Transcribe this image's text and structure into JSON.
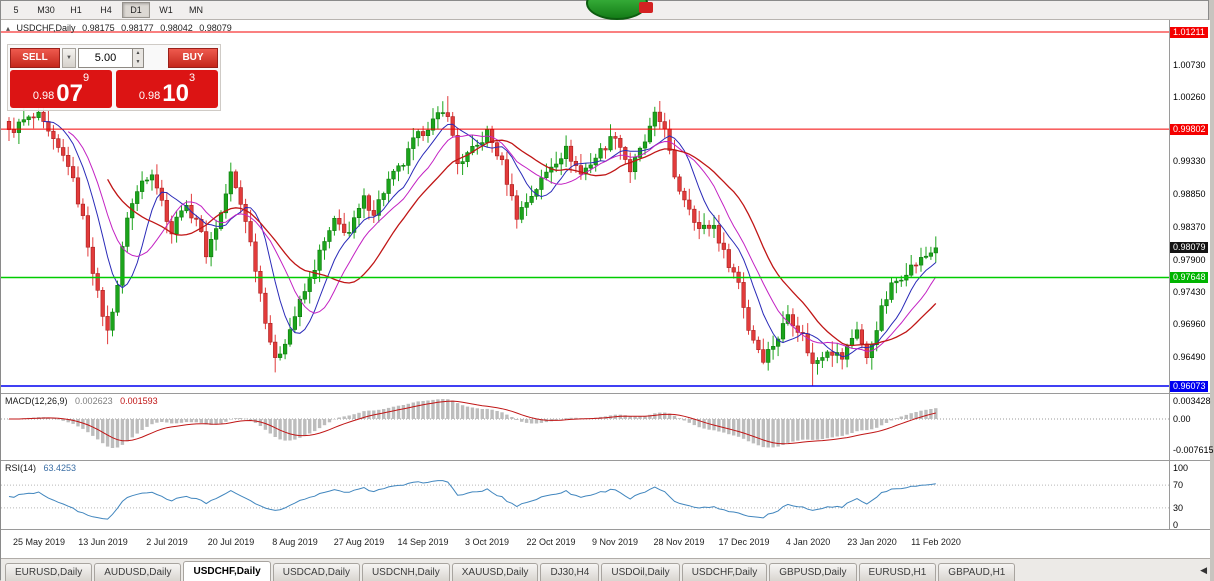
{
  "toolbar": {
    "timeframes": [
      {
        "label": "5",
        "active": false
      },
      {
        "label": "M30",
        "active": false
      },
      {
        "label": "H1",
        "active": false
      },
      {
        "label": "H4",
        "active": false
      },
      {
        "label": "D1",
        "active": true
      },
      {
        "label": "W1",
        "active": false
      },
      {
        "label": "MN",
        "active": false
      }
    ]
  },
  "chart_header": {
    "collapse_icon": "▴",
    "symbol": "USDCHF,Daily",
    "open": "0.98175",
    "high": "0.98177",
    "low": "0.98042",
    "close": "0.98079"
  },
  "one_click": {
    "sell_label": "SELL",
    "buy_label": "BUY",
    "volume": "5.00",
    "sell_price": {
      "base": "0.98",
      "main": "07",
      "sup": "9"
    },
    "buy_price": {
      "base": "0.98",
      "main": "10",
      "sup": "3"
    }
  },
  "price_axis": {
    "labels": [
      {
        "text": "1.01211",
        "type": "red"
      },
      {
        "text": "1.00730",
        "type": "plain"
      },
      {
        "text": "1.00260",
        "type": "plain"
      },
      {
        "text": "0.99802",
        "type": "red"
      },
      {
        "text": "0.99330",
        "type": "plain"
      },
      {
        "text": "0.98850",
        "type": "plain"
      },
      {
        "text": "0.98370",
        "type": "plain"
      },
      {
        "text": "0.98079",
        "type": "current"
      },
      {
        "text": "0.97900",
        "type": "plain"
      },
      {
        "text": "0.97648",
        "type": "green"
      },
      {
        "text": "0.97430",
        "type": "plain"
      },
      {
        "text": "0.96960",
        "type": "plain"
      },
      {
        "text": "0.96490",
        "type": "plain"
      },
      {
        "text": "0.96073",
        "type": "blue"
      }
    ]
  },
  "chart_data": [
    {
      "type": "candlestick",
      "symbol": "USDCHF",
      "timeframe": "Daily",
      "current_ohlc": {
        "open": 0.98175,
        "high": 0.98177,
        "low": 0.98042,
        "close": 0.98079
      },
      "bars": 189,
      "last_close": 0.98079,
      "ylim": [
        0.959,
        1.0135
      ],
      "y_axis": {
        "top_price": 1.01211,
        "top_y": 12,
        "bottom_price": 0.96073,
        "bottom_y": 366
      },
      "close_anchors": [
        [
          0,
          0.9975
        ],
        [
          3,
          0.9992
        ],
        [
          6,
          0.9998
        ],
        [
          9,
          0.996
        ],
        [
          12,
          0.993
        ],
        [
          15,
          0.985
        ],
        [
          18,
          0.974
        ],
        [
          20,
          0.9685
        ],
        [
          22,
          0.9755
        ],
        [
          24,
          0.9855
        ],
        [
          27,
          0.9905
        ],
        [
          29,
          0.992
        ],
        [
          31,
          0.9875
        ],
        [
          33,
          0.983
        ],
        [
          35,
          0.9868
        ],
        [
          38,
          0.9852
        ],
        [
          40,
          0.98
        ],
        [
          43,
          0.9858
        ],
        [
          45,
          0.9915
        ],
        [
          48,
          0.985
        ],
        [
          50,
          0.978
        ],
        [
          52,
          0.9705
        ],
        [
          54,
          0.9642
        ],
        [
          57,
          0.969
        ],
        [
          59,
          0.9728
        ],
        [
          61,
          0.976
        ],
        [
          63,
          0.98
        ],
        [
          66,
          0.9845
        ],
        [
          69,
          0.983
        ],
        [
          72,
          0.9878
        ],
        [
          74,
          0.986
        ],
        [
          77,
          0.9905
        ],
        [
          80,
          0.993
        ],
        [
          82,
          0.9962
        ],
        [
          85,
          0.9985
        ],
        [
          87,
          0.9998
        ],
        [
          89,
          1.0005
        ],
        [
          91,
          0.993
        ],
        [
          95,
          0.9955
        ],
        [
          97,
          0.9975
        ],
        [
          100,
          0.993
        ],
        [
          103,
          0.9855
        ],
        [
          107,
          0.9895
        ],
        [
          110,
          0.9928
        ],
        [
          113,
          0.995
        ],
        [
          116,
          0.9915
        ],
        [
          120,
          0.9948
        ],
        [
          123,
          0.9973
        ],
        [
          126,
          0.992
        ],
        [
          129,
          0.9962
        ],
        [
          131,
          0.9998
        ],
        [
          133,
          0.9985
        ],
        [
          135,
          0.9905
        ],
        [
          138,
          0.9868
        ],
        [
          140,
          0.9835
        ],
        [
          143,
          0.984
        ],
        [
          145,
          0.98
        ],
        [
          148,
          0.9758
        ],
        [
          150,
          0.969
        ],
        [
          153,
          0.9648
        ],
        [
          156,
          0.9678
        ],
        [
          158,
          0.9712
        ],
        [
          161,
          0.968
        ],
        [
          163,
          0.9638
        ],
        [
          166,
          0.9662
        ],
        [
          169,
          0.9648
        ],
        [
          172,
          0.9692
        ],
        [
          174,
          0.9645
        ],
        [
          177,
          0.9718
        ],
        [
          179,
          0.9752
        ],
        [
          182,
          0.9775
        ],
        [
          185,
          0.979
        ],
        [
          188,
          0.98079
        ]
      ],
      "spikes": [
        {
          "i": 20,
          "low": 0.9668
        },
        {
          "i": 54,
          "low": 0.9627
        },
        {
          "i": 89,
          "high": 1.0028
        },
        {
          "i": 163,
          "low": 0.9607
        }
      ],
      "horizontal_lines": [
        {
          "price": 1.01211,
          "color": "#f40000",
          "width": 1
        },
        {
          "price": 0.99802,
          "color": "#f40000",
          "width": 1
        },
        {
          "price": 0.97648,
          "color": "#00cc00",
          "width": 1.4
        },
        {
          "price": 0.96073,
          "color": "#0000f0",
          "width": 1.4
        }
      ],
      "moving_averages": [
        {
          "name": "ma-fast",
          "period": 8,
          "color": "#2a2ab8",
          "width": 1
        },
        {
          "name": "ma-mid",
          "period": 13,
          "color": "#c322c3",
          "width": 1
        },
        {
          "name": "ma-slow",
          "period": 21,
          "color": "#c01616",
          "width": 1.3
        }
      ],
      "candle_colors": {
        "up_fill": "#1ca41c",
        "up_stroke": "#0d7a0d",
        "down_fill": "#e23b3b",
        "down_stroke": "#a81f1f"
      },
      "date_labels": [
        "25 May 2019",
        "13 Jun 2019",
        "2 Jul 2019",
        "20 Jul 2019",
        "8 Aug 2019",
        "27 Aug 2019",
        "14 Sep 2019",
        "3 Oct 2019",
        "22 Oct 2019",
        "9 Nov 2019",
        "28 Nov 2019",
        "17 Dec 2019",
        "4 Jan 2020",
        "23 Jan 2020",
        "11 Feb 2020"
      ]
    },
    {
      "type": "macd-histogram",
      "label": "MACD(12,26,9)",
      "macd_value": "0.002623",
      "signal_value": "0.001593",
      "fast": 12,
      "slow": 26,
      "signal": 9,
      "axis_labels": [
        {
          "text": "0.003428",
          "y": 7
        },
        {
          "text": "0.00",
          "y": 25
        },
        {
          "text": "-0.007615",
          "y": 56
        }
      ],
      "zero_y": 25,
      "histogram_color": "#bdbdbd",
      "signal_color": "#c01616"
    },
    {
      "type": "rsi",
      "label": "RSI(14)",
      "value": "63.4253",
      "period": 14,
      "axis_labels": [
        {
          "text": "100",
          "y": 7
        },
        {
          "text": "70",
          "y": 24
        },
        {
          "text": "30",
          "y": 47
        },
        {
          "text": "0",
          "y": 64
        }
      ],
      "levels": [
        70,
        30
      ],
      "line_color": "#4186be"
    }
  ],
  "tabs": [
    {
      "label": "EURUSD,Daily",
      "active": false
    },
    {
      "label": "AUDUSD,Daily",
      "active": false
    },
    {
      "label": "USDCHF,Daily",
      "active": true
    },
    {
      "label": "USDCAD,Daily",
      "active": false
    },
    {
      "label": "USDCNH,Daily",
      "active": false
    },
    {
      "label": "XAUUSD,Daily",
      "active": false
    },
    {
      "label": "DJ30,H4",
      "active": false
    },
    {
      "label": "USDOil,Daily",
      "active": false
    },
    {
      "label": "USDCHF,Daily",
      "active": false
    },
    {
      "label": "GBPUSD,Daily",
      "active": false
    },
    {
      "label": "EURUSD,H1",
      "active": false
    },
    {
      "label": "GBPAUD,H1",
      "active": false
    }
  ],
  "tab_scroll_icon": "◀"
}
